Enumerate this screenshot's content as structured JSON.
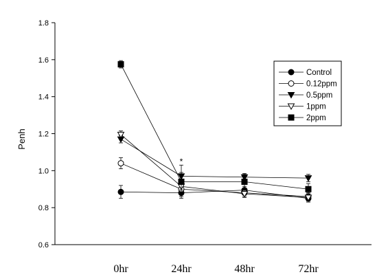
{
  "chart_data": {
    "type": "line",
    "title": "",
    "xlabel": "",
    "ylabel": "Penh",
    "ylim": [
      0.6,
      1.8
    ],
    "yticks": [
      "0.6",
      "0.8",
      "1.0",
      "1.2",
      "1.4",
      "1.6",
      "1.8"
    ],
    "categories": [
      "0hr",
      "24hr",
      "48hr",
      "72hr"
    ],
    "grid": false,
    "legend_position": "top-right",
    "annotations": [
      {
        "text": "*",
        "category": "24hr",
        "y": 1.05
      }
    ],
    "series": [
      {
        "name": "Control",
        "marker": "filled-circle",
        "values": [
          0.885,
          0.88,
          0.895,
          0.85
        ],
        "errors": [
          0.035,
          0.02,
          0.02,
          0.02
        ]
      },
      {
        "name": "0.12ppm",
        "marker": "open-circle",
        "values": [
          1.04,
          0.9,
          0.88,
          0.86
        ],
        "errors": [
          0.03,
          0.02,
          0.02,
          0.02
        ]
      },
      {
        "name": "0.5ppm",
        "marker": "filled-triangle-down",
        "values": [
          1.17,
          0.97,
          0.965,
          0.96
        ],
        "errors": [
          0.02,
          0.02,
          0.02,
          0.02
        ]
      },
      {
        "name": "1ppm",
        "marker": "open-triangle-down",
        "values": [
          1.195,
          0.915,
          0.875,
          0.855
        ],
        "errors": [
          0.02,
          0.02,
          0.02,
          0.02
        ]
      },
      {
        "name": "2ppm",
        "marker": "filled-square",
        "values": [
          1.575,
          0.94,
          0.94,
          0.9
        ],
        "errors": [
          0.02,
          0.09,
          0.04,
          0.03
        ]
      }
    ]
  }
}
